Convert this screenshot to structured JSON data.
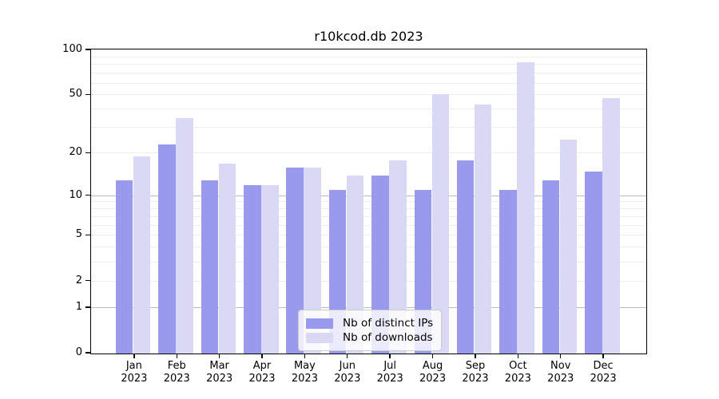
{
  "title": "r10kcod.db 2023",
  "chart_data": {
    "type": "bar",
    "categories": [
      "Jan",
      "Feb",
      "Mar",
      "Apr",
      "May",
      "Jun",
      "Jul",
      "Aug",
      "Sep",
      "Oct",
      "Nov",
      "Dec"
    ],
    "year_label": "2023",
    "series": [
      {
        "name": "Nb of distinct IPs",
        "color": "#9999ee",
        "values": [
          13,
          23,
          13,
          12,
          16,
          11,
          14,
          11,
          18,
          11,
          13,
          15
        ]
      },
      {
        "name": "Nb of downloads",
        "color": "#d9d9f6",
        "values": [
          19,
          35,
          17,
          12,
          16,
          14,
          18,
          51,
          43,
          83,
          25,
          48
        ]
      }
    ],
    "yscale": "log1p",
    "ylim": [
      0,
      100
    ],
    "yticks": [
      0,
      1,
      2,
      5,
      10,
      20,
      50,
      100
    ],
    "major_gridlines": [
      1,
      10
    ],
    "minor_gridlines": [
      2,
      3,
      4,
      5,
      6,
      7,
      8,
      9,
      20,
      30,
      40,
      50,
      60,
      70,
      80,
      90
    ],
    "grid": true,
    "legend_position": "inside lower-center"
  },
  "colors": {
    "bar_ips": "#9999ee",
    "bar_downloads": "#d9d9f6",
    "grid_minor": "#ececec",
    "grid_major": "#bbbbbb",
    "axis": "#000000",
    "legend_border": "#cccccc",
    "background": "#ffffff"
  }
}
